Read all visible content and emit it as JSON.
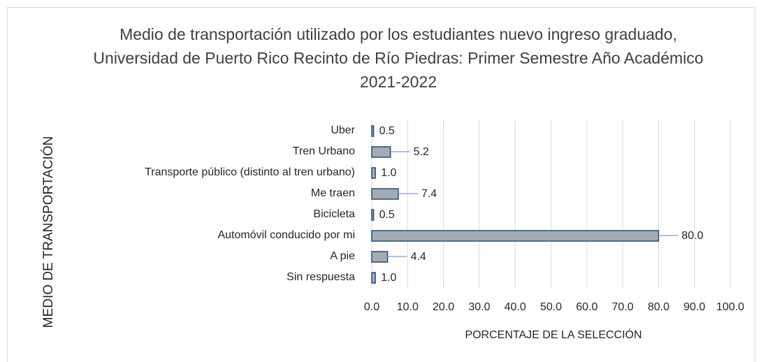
{
  "chart_data": {
    "type": "bar",
    "orientation": "horizontal",
    "title": "Medio de transportación utilizado por los estudiantes nuevo ingreso graduado, Universidad de Puerto Rico Recinto de Río Piedras: Primer Semestre Año Académico 2021-2022",
    "x_label": "PORCENTAJE DE LA SELECCIÓN",
    "y_label": "MEDIO DE TRANSPORTACIÓN",
    "categories": [
      "Uber",
      "Tren Urbano",
      "Transporte público (distinto al tren urbano)",
      "Me traen",
      "Bicicleta",
      "Automóvil conducido por mi",
      "A pie",
      "Sin respuesta"
    ],
    "values": [
      0.5,
      5.2,
      1.0,
      7.4,
      0.5,
      80.0,
      4.4,
      1.0
    ],
    "value_labels": [
      "0.5",
      "5.2",
      "1.0",
      "7.4",
      "0.5",
      "80.0",
      "4.4",
      "1.0"
    ],
    "color": "#a5abb6",
    "xlim": [
      0,
      100
    ],
    "xticks": [
      {
        "value": 0,
        "label": "0.0"
      },
      {
        "value": 10,
        "label": "10.0"
      },
      {
        "value": 20,
        "label": "20.0"
      },
      {
        "value": 30,
        "label": "30.0"
      },
      {
        "value": 40,
        "label": "40.0"
      },
      {
        "value": 50,
        "label": "50.0"
      },
      {
        "value": 60,
        "label": "60.0"
      },
      {
        "value": 70,
        "label": "70.0"
      },
      {
        "value": 80,
        "label": "80.0"
      },
      {
        "value": 90,
        "label": "90.0"
      },
      {
        "value": 100,
        "label": "100.0"
      }
    ],
    "grid": true
  }
}
